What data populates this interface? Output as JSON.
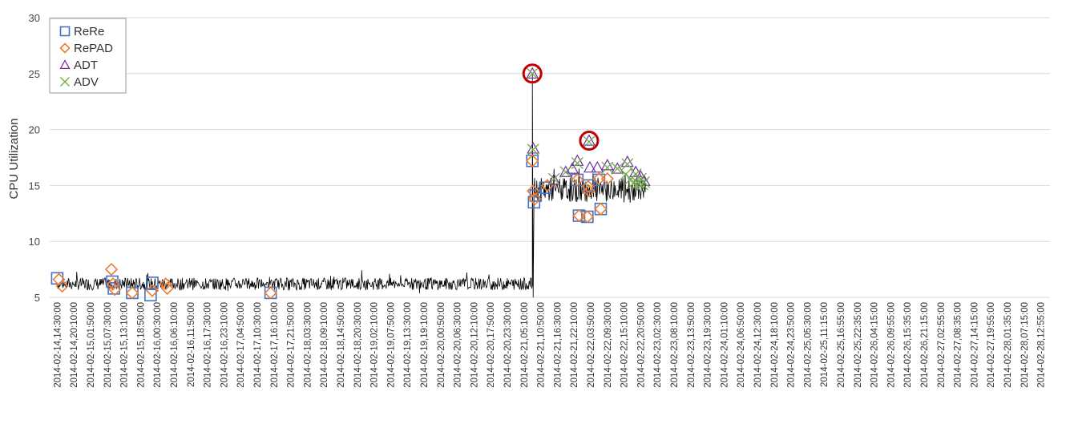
{
  "chart_data": {
    "type": "line",
    "title": "",
    "xlabel": "",
    "ylabel": "CPU Utilization",
    "ylim": [
      5,
      30
    ],
    "yticks": [
      5,
      10,
      15,
      20,
      25,
      30
    ],
    "grid": "horizontal",
    "legend_position": "top-left",
    "x_tick_labels": [
      "2014-02-14,14:30:00",
      "2014-02-14,20:10:00",
      "2014-02-15,01:50:00",
      "2014-02-15,07:30:00",
      "2014-02-15,13:10:00",
      "2014-02-15,18:50:00",
      "2014-02-16,00:30:00",
      "2014-02-16,06:10:00",
      "2014-02-16,11:50:00",
      "2014-02-16,17:30:00",
      "2014-02-16,23:10:00",
      "2014-02-17,04:50:00",
      "2014-02-17,10:30:00",
      "2014-02-17,16:10:00",
      "2014-02-17,21:50:00",
      "2014-02-18,03:30:00",
      "2014-02-18,09:10:00",
      "2014-02-18,14:50:00",
      "2014-02-18,20:30:00",
      "2014-02-19,02:10:00",
      "2014-02-19,07:50:00",
      "2014-02-19,13:30:00",
      "2014-02-19,19:10:00",
      "2014-02-20,00:50:00",
      "2014-02-20,06:30:00",
      "2014-02-20,12:10:00",
      "2014-02-20,17:50:00",
      "2014-02-20,23:30:00",
      "2014-02-21,05:10:00",
      "2014-02-21,10:50:00",
      "2014-02-21,16:30:00",
      "2014-02-21,22:10:00",
      "2014-02-22,03:50:00",
      "2014-02-22,09:30:00",
      "2014-02-22,15:10:00",
      "2014-02-22,20:50:00",
      "2014-02-23,02:30:00",
      "2014-02-23,08:10:00",
      "2014-02-23,13:50:00",
      "2014-02-23,19:30:00",
      "2014-02-24,01:10:00",
      "2014-02-24,06:50:00",
      "2014-02-24,12:30:00",
      "2014-02-24,18:10:00",
      "2014-02-24,23:50:00",
      "2014-02-25,05:30:00",
      "2014-02-25,11:15:00",
      "2014-02-25,16:55:00",
      "2014-02-25,22:35:00",
      "2014-02-26,04:15:00",
      "2014-02-26,09:55:00",
      "2014-02-26,15:35:00",
      "2014-02-26,21:15:00",
      "2014-02-27,02:55:00",
      "2014-02-27,08:35:00",
      "2014-02-27,14:15:00",
      "2014-02-27,19:55:00",
      "2014-02-28,01:35:00",
      "2014-02-28,07:15:00",
      "2014-02-28,12:55:00"
    ],
    "series": [
      {
        "name": "ReRe",
        "marker": "square",
        "color": "#4472c4",
        "points": [
          [
            0,
            6.7
          ],
          [
            3.3,
            6.4
          ],
          [
            3.4,
            5.8
          ],
          [
            4.5,
            5.4
          ],
          [
            5.6,
            5.2
          ],
          [
            5.7,
            6.3
          ],
          [
            12.8,
            5.4
          ],
          [
            28.5,
            17.2
          ],
          [
            28.6,
            13.5
          ],
          [
            28.7,
            14.1
          ],
          [
            29.3,
            14.8
          ],
          [
            31.2,
            15.5
          ],
          [
            31.3,
            12.3
          ],
          [
            31.8,
            12.2
          ],
          [
            31.9,
            15.0
          ],
          [
            32.5,
            15.5
          ],
          [
            32.6,
            12.9
          ]
        ]
      },
      {
        "name": "RePAD",
        "marker": "diamond",
        "color": "#ed7d31",
        "points": [
          [
            0.1,
            6.6
          ],
          [
            0.3,
            6.0
          ],
          [
            3.25,
            7.5
          ],
          [
            3.35,
            6.2
          ],
          [
            3.45,
            5.7
          ],
          [
            4.5,
            5.4
          ],
          [
            5.7,
            5.6
          ],
          [
            6.5,
            6.2
          ],
          [
            6.6,
            5.8
          ],
          [
            12.8,
            5.4
          ],
          [
            28.5,
            17.2
          ],
          [
            28.55,
            14.5
          ],
          [
            28.65,
            13.8
          ],
          [
            29.4,
            15.0
          ],
          [
            31.2,
            15.5
          ],
          [
            31.3,
            12.3
          ],
          [
            31.8,
            12.2
          ],
          [
            31.85,
            14.9
          ],
          [
            31.9,
            14.5
          ],
          [
            32.5,
            15.6
          ],
          [
            32.6,
            12.9
          ],
          [
            33.0,
            15.6
          ]
        ]
      },
      {
        "name": "ADT",
        "marker": "triangle",
        "color": "#7030a0",
        "points": [
          [
            28.5,
            25.0
          ],
          [
            28.55,
            18.3
          ],
          [
            29.8,
            15.5
          ],
          [
            30.5,
            16.2
          ],
          [
            30.9,
            16.5
          ],
          [
            31.2,
            17.2
          ],
          [
            31.9,
            19.0
          ],
          [
            31.95,
            16.6
          ],
          [
            32.4,
            16.6
          ],
          [
            33.0,
            16.8
          ],
          [
            33.6,
            16.5
          ],
          [
            34.2,
            17.1
          ],
          [
            34.7,
            16.2
          ],
          [
            35.0,
            15.8
          ],
          [
            35.2,
            15.4
          ]
        ]
      },
      {
        "name": "ADV",
        "marker": "cross",
        "color": "#70ad47",
        "points": [
          [
            28.5,
            25.0
          ],
          [
            28.55,
            18.2
          ],
          [
            29.8,
            15.6
          ],
          [
            30.5,
            16.2
          ],
          [
            31.2,
            17.0
          ],
          [
            31.9,
            18.9
          ],
          [
            33.0,
            16.6
          ],
          [
            33.6,
            16.5
          ],
          [
            34.1,
            16.0
          ],
          [
            34.2,
            16.9
          ],
          [
            34.4,
            15.6
          ],
          [
            34.55,
            15.2
          ],
          [
            34.7,
            16.0
          ],
          [
            34.85,
            15.2
          ],
          [
            35.0,
            15.6
          ],
          [
            35.1,
            15.1
          ],
          [
            35.2,
            15.3
          ]
        ]
      }
    ],
    "circled_anomalies": [
      [
        28.5,
        25.0
      ],
      [
        31.9,
        19.0
      ]
    ],
    "baseline": {
      "name": "CPU Utilization",
      "color": "#000000",
      "segments": [
        {
          "x_start": 0,
          "x_end": 28.5,
          "mean": 6.2,
          "noise": 0.55
        },
        {
          "x_start": 28.6,
          "x_end": 35.3,
          "mean": 14.6,
          "noise": 1.1
        }
      ]
    }
  }
}
